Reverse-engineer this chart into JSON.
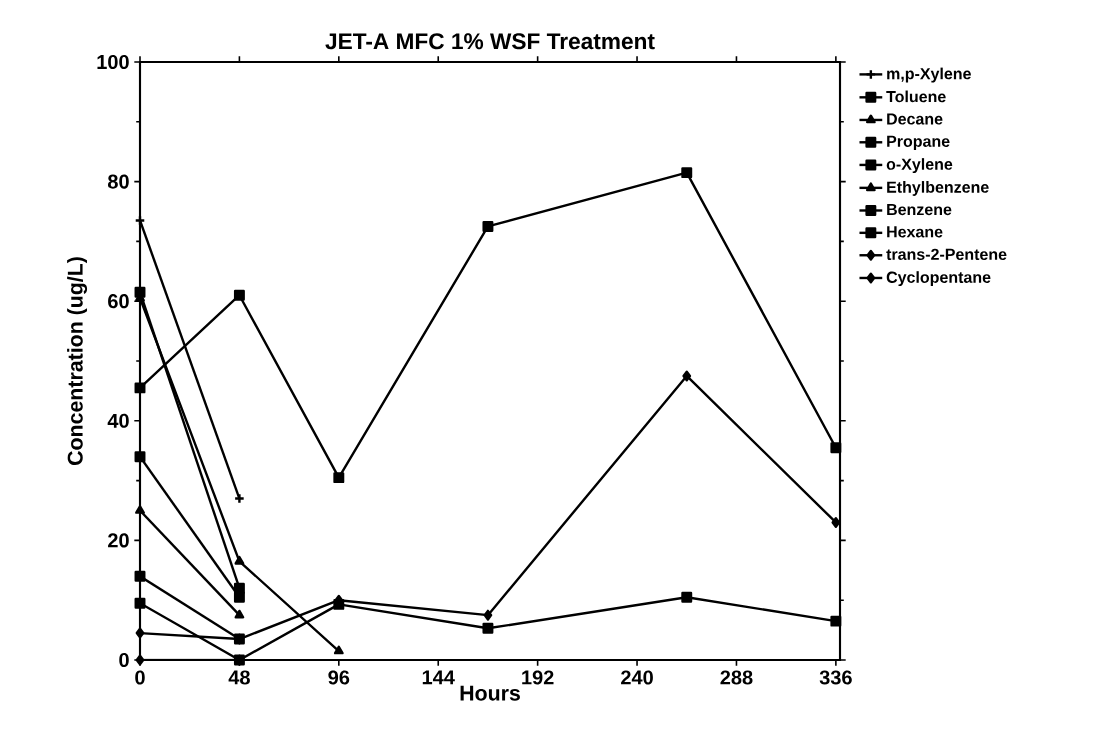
{
  "chart_data": {
    "type": "line",
    "title": "JET-A MFC 1% WSF Treatment",
    "xlabel": "Hours",
    "ylabel": "Concentration (ug/L)",
    "xlim": [
      0,
      338
    ],
    "ylim": [
      0,
      100
    ],
    "xticks": [
      0,
      48,
      96,
      144,
      192,
      240,
      288,
      336
    ],
    "yticks": [
      0,
      20,
      40,
      60,
      80,
      100
    ],
    "legend": "right",
    "grid": false,
    "line_style": "solid",
    "series": [
      {
        "name": "m,p-Xylene",
        "color": "#000000",
        "marker": "cross",
        "x": [
          0,
          48
        ],
        "values": [
          73.5,
          27
        ]
      },
      {
        "name": "Toluene",
        "color": "#000000",
        "marker": "square",
        "x": [
          0,
          48
        ],
        "values": [
          61.5,
          12
        ]
      },
      {
        "name": "Decane",
        "color": "#000000",
        "marker": "triangle",
        "x": [
          0,
          48
        ],
        "values": [
          25,
          7.5
        ]
      },
      {
        "name": "Propane",
        "color": "#000000",
        "marker": "square",
        "x": [
          0,
          48,
          96,
          168,
          264,
          336
        ],
        "values": [
          45.5,
          61,
          30.5,
          72.5,
          81.5,
          35.5
        ]
      },
      {
        "name": "o-Xylene",
        "color": "#000000",
        "marker": "square",
        "x": [
          0,
          48
        ],
        "values": [
          34,
          10.5
        ]
      },
      {
        "name": "Ethylbenzene",
        "color": "#000000",
        "marker": "triangle",
        "x": [
          0,
          48,
          96
        ],
        "values": [
          60.5,
          16.5,
          1.5
        ]
      },
      {
        "name": "Benzene",
        "color": "#000000",
        "marker": "square",
        "x": [
          0,
          48
        ],
        "values": [
          14,
          3.5
        ]
      },
      {
        "name": "Hexane",
        "color": "#000000",
        "marker": "square",
        "x": [
          0,
          48,
          96,
          168,
          264,
          336
        ],
        "values": [
          9.5,
          0,
          9.3,
          5.3,
          10.5,
          6.5
        ]
      },
      {
        "name": "trans-2-Pentene",
        "color": "#000000",
        "marker": "diamond",
        "x": [
          0,
          48,
          96,
          168,
          264,
          336
        ],
        "values": [
          4.5,
          3.5,
          10,
          7.5,
          47.5,
          23
        ]
      },
      {
        "name": "Cyclopentane",
        "color": "#000000",
        "marker": "diamond",
        "x": [
          0,
          48
        ],
        "values": [
          0,
          0
        ]
      }
    ]
  }
}
